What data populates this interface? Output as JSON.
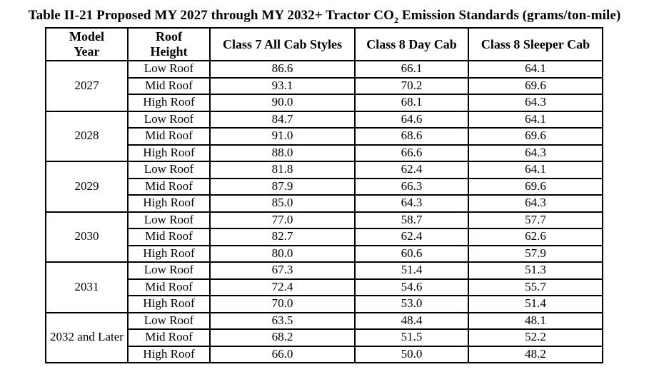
{
  "title": {
    "pre_sub": "Table II-21 Proposed MY 2027 through MY 2032+ Tractor CO",
    "subscript": "2",
    "post_sub": " Emission Standards (grams/ton-mile)"
  },
  "table": {
    "border_color": "#000000",
    "headers": [
      {
        "id": "model_year",
        "label": "Model\nYear"
      },
      {
        "id": "roof_height",
        "label": "Roof\nHeight"
      },
      {
        "id": "class7",
        "label": "Class 7 All Cab Styles"
      },
      {
        "id": "class8_day",
        "label": "Class 8 Day Cab"
      },
      {
        "id": "class8_sleeper",
        "label": "Class 8 Sleeper Cab"
      }
    ],
    "groups": [
      {
        "model_year": "2027",
        "rows": [
          {
            "roof": "Low Roof",
            "class7": "86.6",
            "day": "66.1",
            "sleeper": "64.1"
          },
          {
            "roof": "Mid Roof",
            "class7": "93.1",
            "day": "70.2",
            "sleeper": "69.6"
          },
          {
            "roof": "High Roof",
            "class7": "90.0",
            "day": "68.1",
            "sleeper": "64.3"
          }
        ]
      },
      {
        "model_year": "2028",
        "rows": [
          {
            "roof": "Low Roof",
            "class7": "84.7",
            "day": "64.6",
            "sleeper": "64.1"
          },
          {
            "roof": "Mid Roof",
            "class7": "91.0",
            "day": "68.6",
            "sleeper": "69.6"
          },
          {
            "roof": "High Roof",
            "class7": "88.0",
            "day": "66.6",
            "sleeper": "64.3"
          }
        ]
      },
      {
        "model_year": "2029",
        "rows": [
          {
            "roof": "Low Roof",
            "class7": "81.8",
            "day": "62.4",
            "sleeper": "64.1"
          },
          {
            "roof": "Mid Roof",
            "class7": "87.9",
            "day": "66.3",
            "sleeper": "69.6"
          },
          {
            "roof": "High Roof",
            "class7": "85.0",
            "day": "64.3",
            "sleeper": "64.3"
          }
        ]
      },
      {
        "model_year": "2030",
        "rows": [
          {
            "roof": "Low Roof",
            "class7": "77.0",
            "day": "58.7",
            "sleeper": "57.7"
          },
          {
            "roof": "Mid Roof",
            "class7": "82.7",
            "day": "62.4",
            "sleeper": "62.6"
          },
          {
            "roof": "High Roof",
            "class7": "80.0",
            "day": "60.6",
            "sleeper": "57.9"
          }
        ]
      },
      {
        "model_year": "2031",
        "rows": [
          {
            "roof": "Low Roof",
            "class7": "67.3",
            "day": "51.4",
            "sleeper": "51.3"
          },
          {
            "roof": "Mid Roof",
            "class7": "72.4",
            "day": "54.6",
            "sleeper": "55.7"
          },
          {
            "roof": "High Roof",
            "class7": "70.0",
            "day": "53.0",
            "sleeper": "51.4"
          }
        ]
      },
      {
        "model_year": "2032 and Later",
        "rows": [
          {
            "roof": "Low Roof",
            "class7": "63.5",
            "day": "48.4",
            "sleeper": "48.1"
          },
          {
            "roof": "Mid Roof",
            "class7": "68.2",
            "day": "51.5",
            "sleeper": "52.2"
          },
          {
            "roof": "High Roof",
            "class7": "66.0",
            "day": "50.0",
            "sleeper": "48.2"
          }
        ]
      }
    ]
  }
}
